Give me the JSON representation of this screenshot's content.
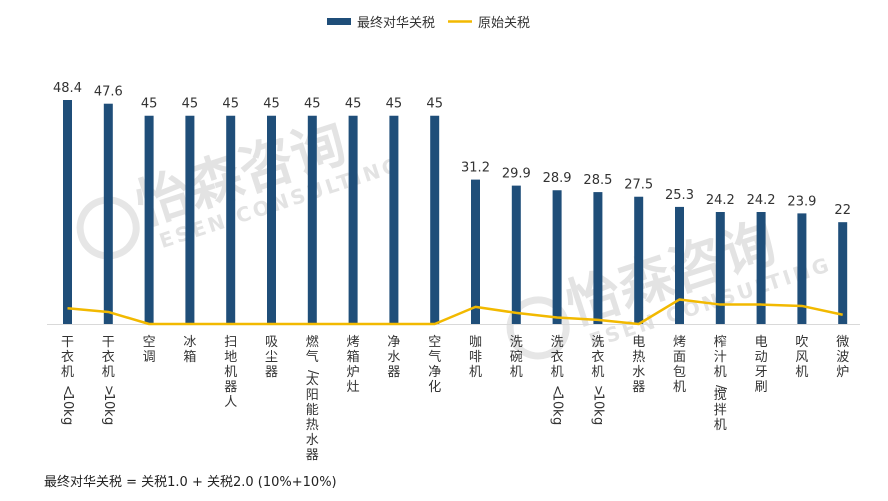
{
  "chart_data": {
    "type": "bar",
    "categories": [
      "干衣机<10kg",
      "干衣机>10kg",
      "空调",
      "冰箱",
      "扫地机器人",
      "吸尘器",
      "燃气/太阳能热水器",
      "烤箱炉灶",
      "净水器",
      "空气净化",
      "咖啡机",
      "洗碗机",
      "洗衣机<10kg",
      "洗衣机>10kg",
      "电热水器",
      "烤面包机",
      "榨汁机/搅拌机",
      "电动牙刷",
      "吹风机",
      "微波炉"
    ],
    "series": [
      {
        "name": "最终对华关税",
        "type": "bar",
        "color": "#1f4e79",
        "values": [
          48.4,
          47.6,
          45,
          45,
          45,
          45,
          45,
          45,
          45,
          45,
          31.2,
          29.9,
          28.9,
          28.5,
          27.5,
          25.3,
          24.2,
          24.2,
          23.9,
          22
        ]
      },
      {
        "name": "原始关税",
        "type": "line",
        "color": "#f2b900",
        "values": [
          3.4,
          2.6,
          0,
          0,
          0,
          0,
          0,
          0,
          0,
          0,
          3.7,
          2.4,
          1.4,
          0.9,
          0,
          5.3,
          4.2,
          4.2,
          3.9,
          2
        ]
      }
    ],
    "value_labels": [
      "48.4",
      "47.6",
      "45",
      "45",
      "45",
      "45",
      "45",
      "45",
      "45",
      "45",
      "31.2",
      "29.9",
      "28.9",
      "28.5",
      "27.5",
      "25.3",
      "24.2",
      "24.2",
      "23.9",
      "22"
    ],
    "ylim": [
      0,
      48.4
    ],
    "grid": false,
    "legend_position": "top-center",
    "note": "最终对华关税 = 关税1.0 + 关税2.0 (10%+10%)"
  },
  "watermark": {
    "text_cn": "怡森咨询",
    "text_en": "ESEN CONSULTING"
  }
}
